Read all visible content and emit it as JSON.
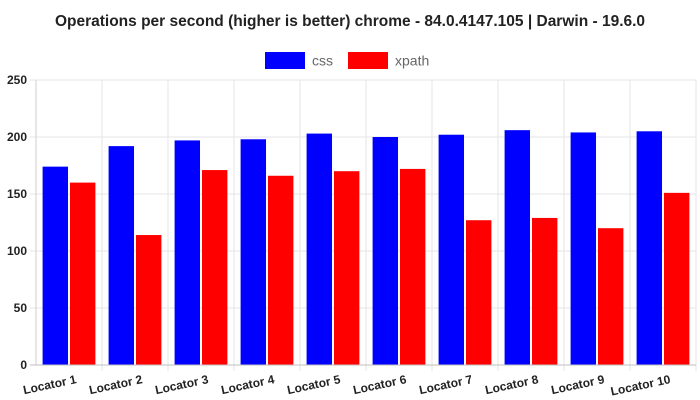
{
  "chart_data": {
    "type": "bar",
    "title": "Operations per second (higher is better) chrome - 84.0.4147.105 | Darwin - 19.6.0",
    "xlabel": "",
    "ylabel": "",
    "ylim": [
      0,
      250
    ],
    "yticks": [
      "0",
      "50",
      "100",
      "150",
      "200",
      "250"
    ],
    "grid": true,
    "legend_position": "top-center",
    "categories": [
      "Locator 1",
      "Locator 2",
      "Locator 3",
      "Locator 4",
      "Locator 5",
      "Locator 6",
      "Locator 7",
      "Locator 8",
      "Locator 9",
      "Locator 10"
    ],
    "series": [
      {
        "name": "css",
        "color": "#0000ff",
        "values": [
          174,
          192,
          197,
          198,
          203,
          200,
          202,
          206,
          204,
          205
        ]
      },
      {
        "name": "xpath",
        "color": "#ff0000",
        "values": [
          160,
          114,
          171,
          166,
          170,
          172,
          127,
          129,
          120,
          151
        ]
      }
    ]
  }
}
